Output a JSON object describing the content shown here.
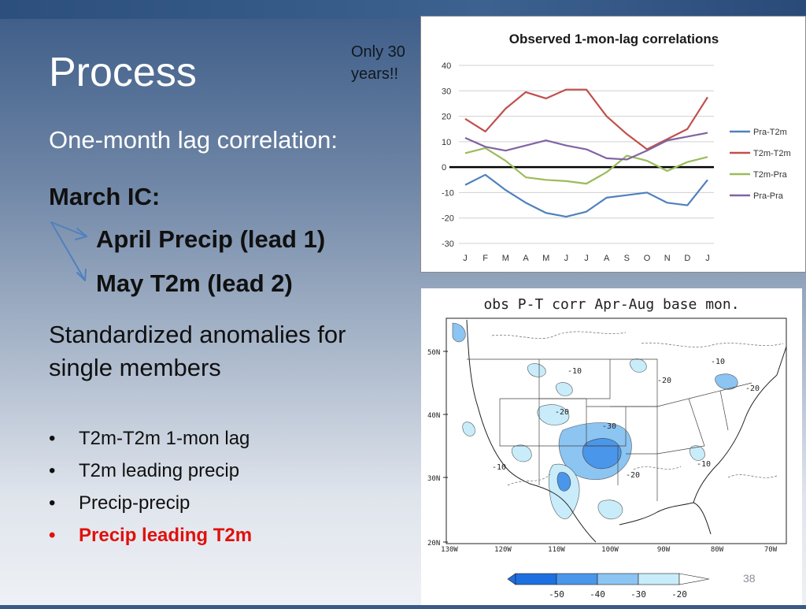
{
  "slide": {
    "title": "Process",
    "subtitle": "One-month lag correlation:",
    "note": "Only 30 years!!",
    "ic_label": "March IC:",
    "lead1": "April Precip (lead 1)",
    "lead2": "May T2m (lead 2)",
    "standardized": "Standardized anomalies for single members",
    "bullets": [
      {
        "text": "T2m-T2m 1-mon lag",
        "highlight": false
      },
      {
        "text": "T2m leading precip",
        "highlight": false
      },
      {
        "text": "Precip-precip",
        "highlight": false
      },
      {
        "text": "Precip leading T2m",
        "highlight": true
      }
    ],
    "bullet_symbol": "•",
    "page_number": "38",
    "colors": {
      "title": "#ffffff",
      "highlight": "#e0110c",
      "arrow": "#4f81bd"
    }
  },
  "chart_data": [
    {
      "type": "line",
      "title": "Observed 1-mon-lag correlations",
      "categories": [
        "J",
        "F",
        "M",
        "A",
        "M",
        "J",
        "J",
        "A",
        "S",
        "O",
        "N",
        "D",
        "J"
      ],
      "yticks": [
        40,
        30,
        20,
        10,
        0,
        -10,
        -20,
        -30
      ],
      "ylim": [
        -30,
        40
      ],
      "grid": true,
      "legend_position": "right",
      "zero_line": true,
      "series": [
        {
          "name": "Pra-T2m",
          "color": "#4f81bd",
          "values": [
            -7,
            -3,
            -9,
            -14,
            -18,
            -19.5,
            -17.5,
            -12,
            -11,
            -10,
            -14,
            -15,
            -5
          ]
        },
        {
          "name": "T2m-T2m",
          "color": "#c0504d",
          "values": [
            19,
            14,
            23,
            29.5,
            27,
            30.5,
            30.5,
            20,
            13,
            7,
            11,
            15,
            27.5
          ]
        },
        {
          "name": "T2m-Pra",
          "color": "#9bbb59",
          "values": [
            5.5,
            7.5,
            2.5,
            -4,
            -5,
            -5.5,
            -6.5,
            -2,
            4.5,
            2.5,
            -1.5,
            2,
            4
          ]
        },
        {
          "name": "Pra-Pra",
          "color": "#8064a2",
          "values": [
            11.5,
            8,
            6.5,
            8.5,
            10.5,
            8.5,
            7,
            3.5,
            3,
            6.5,
            10.5,
            12,
            13.5
          ]
        }
      ]
    },
    {
      "type": "heatmap",
      "title": "obs P-T corr Apr-Aug base mon.",
      "ylabels": [
        "50N",
        "40N",
        "30N",
        "20N"
      ],
      "xlabels": [
        "130W",
        "120W",
        "110W",
        "100W",
        "90W",
        "80W",
        "70W"
      ],
      "colorbar": {
        "labels": [
          "-50",
          "-40",
          "-30",
          "-20"
        ],
        "colors": [
          "#1e6fe0",
          "#4a96ea",
          "#8cc4f2",
          "#c8ecfa"
        ]
      },
      "contour_labels": [
        "-10",
        "-20",
        "-30",
        "-20",
        "-10",
        "-20",
        "-10",
        "-20",
        "-10"
      ]
    }
  ]
}
